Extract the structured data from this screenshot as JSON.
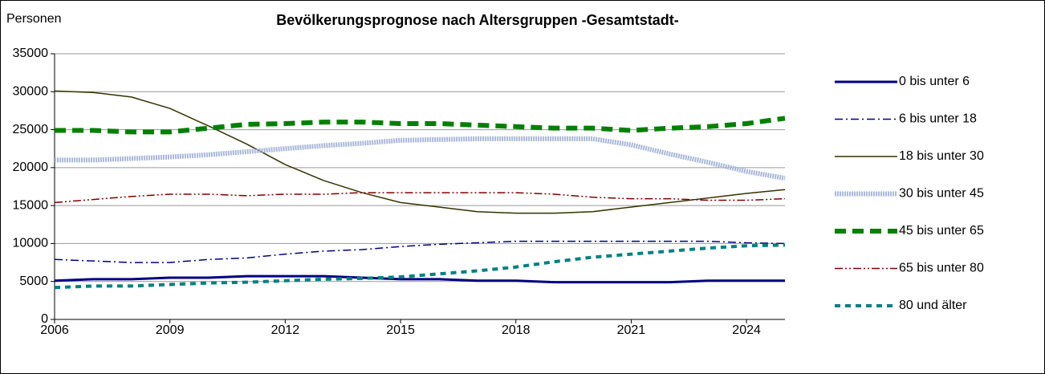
{
  "chart_data": {
    "type": "line",
    "title": "Bevölkerungsprognose nach Altersgruppen -Gesamtstadt-",
    "y_label": "Personen",
    "x": [
      2006,
      2007,
      2008,
      2009,
      2010,
      2011,
      2012,
      2013,
      2014,
      2015,
      2016,
      2017,
      2018,
      2019,
      2020,
      2021,
      2022,
      2023,
      2024,
      2025
    ],
    "xlim": [
      2006,
      2025
    ],
    "xticks": [
      2006,
      2009,
      2012,
      2015,
      2018,
      2021,
      2024
    ],
    "ylim": [
      0,
      35000
    ],
    "yticks": [
      0,
      5000,
      10000,
      15000,
      20000,
      25000,
      30000,
      35000
    ],
    "grid": true,
    "legend": "right",
    "series": [
      {
        "name": "0 bis unter 6",
        "color": "#000080",
        "values": [
          5100,
          5300,
          5300,
          5500,
          5500,
          5700,
          5700,
          5700,
          5500,
          5300,
          5300,
          5100,
          5100,
          4900,
          4900,
          4900,
          4900,
          5100,
          5100,
          5100
        ]
      },
      {
        "name": "6 bis unter 18",
        "color": "#000080",
        "values": [
          7900,
          7700,
          7500,
          7500,
          7900,
          8100,
          8600,
          9000,
          9200,
          9600,
          9900,
          10100,
          10300,
          10300,
          10300,
          10300,
          10300,
          10300,
          10100,
          10000
        ]
      },
      {
        "name": "18 bis unter 30",
        "color": "#333300",
        "values": [
          30100,
          29900,
          29300,
          27800,
          25500,
          23100,
          20400,
          18300,
          16700,
          15400,
          14800,
          14200,
          14000,
          14000,
          14200,
          14800,
          15400,
          16000,
          16600,
          17100
        ]
      },
      {
        "name": "30 bis unter 45",
        "color": "#a9b9d9",
        "values": [
          21000,
          21000,
          21200,
          21400,
          21700,
          22100,
          22500,
          22900,
          23200,
          23600,
          23700,
          23800,
          23800,
          23800,
          23800,
          23000,
          21800,
          20700,
          19500,
          18600
        ]
      },
      {
        "name": "45 bis unter 65",
        "color": "#008000",
        "values": [
          24900,
          24900,
          24700,
          24700,
          25200,
          25700,
          25800,
          26000,
          26000,
          25800,
          25800,
          25600,
          25400,
          25200,
          25200,
          24900,
          25200,
          25400,
          25800,
          26500
        ]
      },
      {
        "name": "65 bis unter 80",
        "color": "#800000",
        "values": [
          15400,
          15800,
          16200,
          16500,
          16500,
          16300,
          16500,
          16500,
          16700,
          16700,
          16700,
          16700,
          16700,
          16500,
          16100,
          15900,
          15900,
          15700,
          15700,
          15900
        ]
      },
      {
        "name": "80 und älter",
        "color": "#008080",
        "values": [
          4200,
          4400,
          4400,
          4600,
          4800,
          4900,
          5100,
          5300,
          5400,
          5600,
          6000,
          6400,
          6900,
          7600,
          8200,
          8600,
          9000,
          9400,
          9700,
          9800
        ]
      }
    ]
  }
}
